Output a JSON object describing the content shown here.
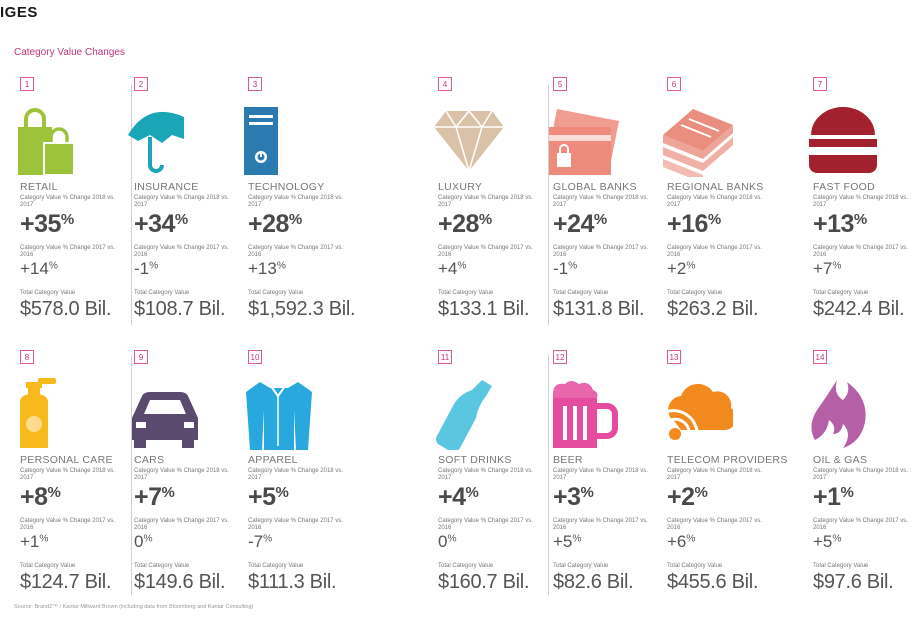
{
  "page": {
    "heading": "IGES",
    "subtitle": "Category Value Changes",
    "source": "Source: BrandZ™ / Kantar Millward Brown (including data from Bloomberg and Kantar Consulting)"
  },
  "labels": {
    "change_2018": "Category Value % Change 2018 vs. 2017",
    "change_2017": "Category Value % Change 2017 vs. 2016",
    "total": "Total Category Value"
  },
  "categories": [
    {
      "num": "1",
      "name": "RETAIL",
      "pct2018": "+35",
      "pct2017": "+14",
      "total": "$578.0 Bil.",
      "icon": "shopping-bags-icon",
      "color": "#9dc33b"
    },
    {
      "num": "2",
      "name": "INSURANCE",
      "pct2018": "+34",
      "pct2017": "-1",
      "total": "$108.7 Bil.",
      "icon": "umbrella-icon",
      "color": "#1aa6b7"
    },
    {
      "num": "3",
      "name": "TECHNOLOGY",
      "pct2018": "+28",
      "pct2017": "+13",
      "total": "$1,592.3 Bil.",
      "icon": "computer-tower-icon",
      "color": "#2b7bb0"
    },
    {
      "num": "4",
      "name": "LUXURY",
      "pct2018": "+28",
      "pct2017": "+4",
      "total": "$133.1 Bil.",
      "icon": "diamond-icon",
      "color": "#d9c2a7"
    },
    {
      "num": "5",
      "name": "GLOBAL BANKS",
      "pct2018": "+24",
      "pct2017": "-1",
      "total": "$131.8 Bil.",
      "icon": "cards-lock-icon",
      "color": "#ef8b7c"
    },
    {
      "num": "6",
      "name": "REGIONAL BANKS",
      "pct2018": "+16",
      "pct2017": "+2",
      "total": "$263.2 Bil.",
      "icon": "cash-stack-icon",
      "color": "#ea8f7f"
    },
    {
      "num": "7",
      "name": "FAST FOOD",
      "pct2018": "+13",
      "pct2017": "+7",
      "total": "$242.4 Bil.",
      "icon": "burger-icon",
      "color": "#a3202e"
    },
    {
      "num": "8",
      "name": "PERSONAL CARE",
      "pct2018": "+8",
      "pct2017": "+1",
      "total": "$124.7 Bil.",
      "icon": "soap-bottle-icon",
      "color": "#f7b91b"
    },
    {
      "num": "9",
      "name": "CARS",
      "pct2018": "+7",
      "pct2017": "0",
      "total": "$149.6 Bil.",
      "icon": "car-icon",
      "color": "#5a4a6e"
    },
    {
      "num": "10",
      "name": "APPAREL",
      "pct2018": "+5",
      "pct2017": "-7",
      "total": "$111.3 Bil.",
      "icon": "shirt-icon",
      "color": "#29a8e0"
    },
    {
      "num": "11",
      "name": "SOFT DRINKS",
      "pct2018": "+4",
      "pct2017": "0",
      "total": "$160.7 Bil.",
      "icon": "soda-bottle-icon",
      "color": "#5bc6e0"
    },
    {
      "num": "12",
      "name": "BEER",
      "pct2018": "+3",
      "pct2017": "+5",
      "total": "$82.6 Bil.",
      "icon": "beer-mug-icon",
      "color": "#e54b9e"
    },
    {
      "num": "13",
      "name": "TELECOM PROVIDERS",
      "pct2018": "+2",
      "pct2017": "+6",
      "total": "$455.6 Bil.",
      "icon": "cloud-signal-icon",
      "color": "#f38a1f"
    },
    {
      "num": "14",
      "name": "OIL & GAS",
      "pct2018": "+1",
      "pct2017": "+5",
      "total": "$97.6 Bil.",
      "icon": "flame-icon",
      "color": "#b560a6"
    }
  ]
}
